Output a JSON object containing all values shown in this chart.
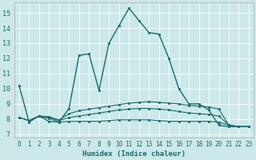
{
  "xlabel": "Humidex (Indice chaleur)",
  "xlim": [
    -0.5,
    23.5
  ],
  "ylim": [
    6.8,
    15.7
  ],
  "yticks": [
    7,
    8,
    9,
    10,
    11,
    12,
    13,
    14,
    15
  ],
  "xticks": [
    0,
    1,
    2,
    3,
    4,
    5,
    6,
    7,
    8,
    9,
    10,
    11,
    12,
    13,
    14,
    15,
    16,
    17,
    18,
    19,
    20,
    21,
    22,
    23
  ],
  "bg_color": "#cce8e8",
  "line_color": "#1a6b6b",
  "grid_color": "#ffffff",
  "series1_x": [
    0,
    1,
    2,
    3,
    4,
    5,
    6,
    7,
    8,
    9,
    10,
    11,
    12,
    13,
    14,
    15,
    16,
    17,
    18,
    19,
    20,
    21,
    22,
    23
  ],
  "series1_y": [
    10.2,
    7.8,
    8.2,
    7.85,
    7.8,
    8.7,
    12.2,
    12.3,
    9.9,
    13.0,
    14.15,
    15.3,
    14.5,
    13.7,
    13.6,
    12.0,
    10.0,
    9.0,
    9.0,
    8.6,
    7.6,
    7.5,
    7.5,
    7.5
  ],
  "series2_x": [
    0,
    1,
    2,
    3,
    4,
    5,
    6,
    7,
    8,
    9,
    10,
    11,
    12,
    13,
    14,
    15,
    16,
    17,
    18,
    19,
    20,
    21,
    22,
    23
  ],
  "series2_y": [
    8.1,
    7.9,
    8.2,
    8.15,
    7.95,
    8.35,
    8.55,
    8.65,
    8.75,
    8.85,
    8.95,
    9.05,
    9.1,
    9.15,
    9.1,
    9.05,
    9.0,
    8.9,
    8.85,
    8.8,
    8.65,
    7.6,
    7.5,
    7.5
  ],
  "series3_x": [
    0,
    1,
    2,
    3,
    4,
    5,
    6,
    7,
    8,
    9,
    10,
    11,
    12,
    13,
    14,
    15,
    16,
    17,
    18,
    19,
    20,
    21,
    22,
    23
  ],
  "series3_y": [
    8.1,
    7.9,
    8.2,
    8.1,
    7.9,
    8.1,
    8.2,
    8.3,
    8.4,
    8.5,
    8.6,
    8.65,
    8.7,
    8.7,
    8.65,
    8.6,
    8.5,
    8.4,
    8.35,
    8.3,
    8.2,
    7.6,
    7.5,
    7.5
  ],
  "series4_x": [
    0,
    1,
    2,
    3,
    4,
    5,
    6,
    7,
    8,
    9,
    10,
    11,
    12,
    13,
    14,
    15,
    16,
    17,
    18,
    19,
    20,
    21,
    22,
    23
  ],
  "series4_y": [
    8.1,
    7.9,
    8.2,
    8.05,
    7.8,
    7.85,
    7.85,
    7.85,
    7.85,
    7.9,
    7.95,
    7.95,
    7.95,
    7.95,
    7.9,
    7.85,
    7.85,
    7.85,
    7.85,
    7.85,
    7.8,
    7.6,
    7.5,
    7.5
  ]
}
